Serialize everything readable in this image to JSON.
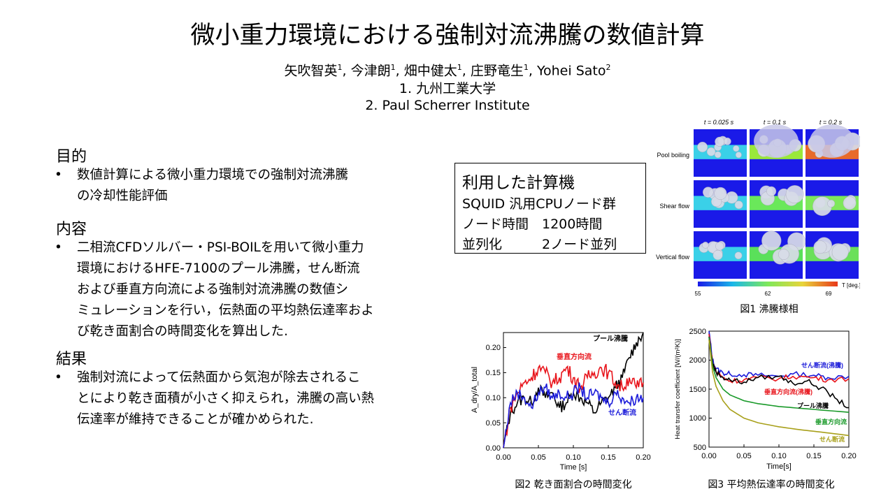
{
  "title": "微小重力環境における強制対流沸騰の数値計算",
  "authors": [
    {
      "name": "矢吹智英",
      "aff": "1"
    },
    {
      "name": "今津朗",
      "aff": "1"
    },
    {
      "name": "畑中健太",
      "aff": "1"
    },
    {
      "name": "庄野竜生",
      "aff": "1"
    },
    {
      "name": "Yohei Sato",
      "aff": "2"
    }
  ],
  "affiliations": [
    "1. 九州工業大学",
    "2. Paul Scherrer Institute"
  ],
  "sections": [
    {
      "heading": "目的",
      "bullet": "•",
      "lines": [
        "数値計算による微小重力環境での強制対流沸騰",
        "の冷却性能評価"
      ]
    },
    {
      "heading": "内容",
      "bullet": "•",
      "lines": [
        "二相流CFDソルバー・PSI-BOILを用いて微小重力",
        "環境におけるHFE-7100のプール沸騰，せん断流",
        "および垂直方向流による強制対流沸騰の数値シ",
        "ミュレーションを行い，伝熱面の平均熱伝達率およ",
        "び乾き面割合の時間変化を算出した."
      ]
    },
    {
      "heading": "結果",
      "bullet": "•",
      "lines": [
        "強制対流によって伝熱面から気泡が除去されるこ",
        "とにより乾き面積が小さく抑えられ，沸騰の高い熱",
        "伝達率が維持できることが確かめられた."
      ]
    }
  ],
  "calc_box": {
    "heading": "利用した計算機",
    "rows": [
      "SQUID 汎用CPUノード群",
      "ノード時間　1200時間",
      "並列化　　　2ノード並列"
    ]
  },
  "fig1": {
    "caption": "図1 沸騰様相",
    "time_labels": [
      "t = 0.025 s",
      "t = 0.1 s",
      "t = 0.2 s"
    ],
    "row_labels": [
      "Pool boiling",
      "Shear flow",
      "Vertical flow"
    ],
    "colorbar_ticks": [
      "55",
      "62",
      "69"
    ],
    "colorbar_label": "T [deg.]"
  },
  "fig2": {
    "caption": "図2 乾き面割合の時間変化",
    "xlabel": "Time [s]",
    "ylabel": "A_dry/A_total",
    "x_ticks": [
      "0.00",
      "0.05",
      "0.10",
      "0.15",
      "0.20"
    ],
    "y_ticks": [
      "0.00",
      "0.05",
      "0.10",
      "0.15",
      "0.20"
    ],
    "series_labels": {
      "pool": "プール沸騰",
      "vertical": "垂直方向流",
      "shear": "せん断流"
    }
  },
  "fig3": {
    "caption": "図3 平均熱伝達率の時間変化",
    "xlabel": "Time[s]",
    "ylabel": "Heat transfer coefficient [W/(m²K)]",
    "x_ticks": [
      "0.00",
      "0.05",
      "0.10",
      "0.15",
      "0.20"
    ],
    "y_ticks": [
      "500",
      "1000",
      "1500",
      "2000",
      "2500"
    ],
    "series_labels": {
      "shear_boil": "せん断流(沸騰)",
      "vert_boil": "垂直方向流(沸騰)",
      "pool": "プール沸騰",
      "vert_single": "垂直方向流",
      "shear_single": "せん断流"
    }
  },
  "chart_data": [
    {
      "type": "line",
      "xlabel": "Time [s]",
      "ylabel": "A_dry/A_total",
      "xlim": [
        0,
        0.2
      ],
      "ylim": [
        0,
        0.23
      ],
      "series": [
        {
          "name": "プール沸騰",
          "color": "#000000",
          "x": [
            0,
            0.01,
            0.02,
            0.03,
            0.04,
            0.05,
            0.06,
            0.07,
            0.08,
            0.09,
            0.1,
            0.11,
            0.12,
            0.13,
            0.14,
            0.15,
            0.16,
            0.17,
            0.18,
            0.19,
            0.2
          ],
          "y": [
            0,
            0.07,
            0.09,
            0.1,
            0.09,
            0.12,
            0.1,
            0.11,
            0.08,
            0.09,
            0.11,
            0.1,
            0.09,
            0.07,
            0.09,
            0.1,
            0.12,
            0.14,
            0.18,
            0.21,
            0.23
          ]
        },
        {
          "name": "垂直方向流",
          "color": "#e8141b",
          "x": [
            0,
            0.01,
            0.02,
            0.03,
            0.04,
            0.05,
            0.06,
            0.07,
            0.08,
            0.09,
            0.1,
            0.11,
            0.12,
            0.13,
            0.14,
            0.15,
            0.16,
            0.17,
            0.18,
            0.19,
            0.2
          ],
          "y": [
            0,
            0.08,
            0.11,
            0.13,
            0.14,
            0.16,
            0.15,
            0.13,
            0.14,
            0.16,
            0.14,
            0.12,
            0.14,
            0.15,
            0.16,
            0.15,
            0.13,
            0.12,
            0.14,
            0.12,
            0.13
          ]
        },
        {
          "name": "せん断流",
          "color": "#1a1ad9",
          "x": [
            0,
            0.01,
            0.02,
            0.03,
            0.04,
            0.05,
            0.06,
            0.07,
            0.08,
            0.09,
            0.1,
            0.11,
            0.12,
            0.13,
            0.14,
            0.15,
            0.16,
            0.17,
            0.18,
            0.19,
            0.2
          ],
          "y": [
            0,
            0.09,
            0.11,
            0.1,
            0.08,
            0.11,
            0.12,
            0.1,
            0.11,
            0.1,
            0.11,
            0.12,
            0.1,
            0.11,
            0.1,
            0.09,
            0.11,
            0.1,
            0.09,
            0.1,
            0.1
          ]
        }
      ]
    },
    {
      "type": "line",
      "xlabel": "Time[s]",
      "ylabel": "Heat transfer coefficient [W/(m²K)]",
      "xlim": [
        0,
        0.2
      ],
      "ylim": [
        500,
        2500
      ],
      "series": [
        {
          "name": "せん断流(沸騰)",
          "color": "#1a1ad9",
          "x": [
            0,
            0.005,
            0.01,
            0.02,
            0.03,
            0.05,
            0.07,
            0.1,
            0.12,
            0.15,
            0.17,
            0.2
          ],
          "y": [
            2500,
            2000,
            1850,
            1780,
            1760,
            1750,
            1740,
            1720,
            1760,
            1740,
            1700,
            1720
          ]
        },
        {
          "name": "垂直方向流(沸騰)",
          "color": "#e8141b",
          "x": [
            0,
            0.005,
            0.01,
            0.02,
            0.03,
            0.05,
            0.07,
            0.1,
            0.12,
            0.15,
            0.17,
            0.2
          ],
          "y": [
            2450,
            1950,
            1800,
            1700,
            1640,
            1660,
            1700,
            1680,
            1720,
            1700,
            1660,
            1680
          ]
        },
        {
          "name": "プール沸騰",
          "color": "#000000",
          "x": [
            0,
            0.005,
            0.01,
            0.02,
            0.03,
            0.05,
            0.07,
            0.1,
            0.12,
            0.14,
            0.16,
            0.18,
            0.2
          ],
          "y": [
            2400,
            1950,
            1800,
            1700,
            1660,
            1620,
            1700,
            1720,
            1600,
            1640,
            1520,
            1350,
            1180
          ]
        },
        {
          "name": "垂直方向流",
          "color": "#1a9a2a",
          "x": [
            0,
            0.005,
            0.01,
            0.02,
            0.03,
            0.05,
            0.07,
            0.1,
            0.13,
            0.16,
            0.2
          ],
          "y": [
            2400,
            1900,
            1700,
            1500,
            1400,
            1300,
            1250,
            1200,
            1170,
            1140,
            1100
          ]
        },
        {
          "name": "せん断流",
          "color": "#a8a01a",
          "x": [
            0,
            0.005,
            0.01,
            0.02,
            0.03,
            0.05,
            0.07,
            0.1,
            0.13,
            0.16,
            0.2
          ],
          "y": [
            2350,
            1800,
            1550,
            1300,
            1150,
            1000,
            920,
            850,
            800,
            760,
            700
          ]
        }
      ]
    }
  ]
}
